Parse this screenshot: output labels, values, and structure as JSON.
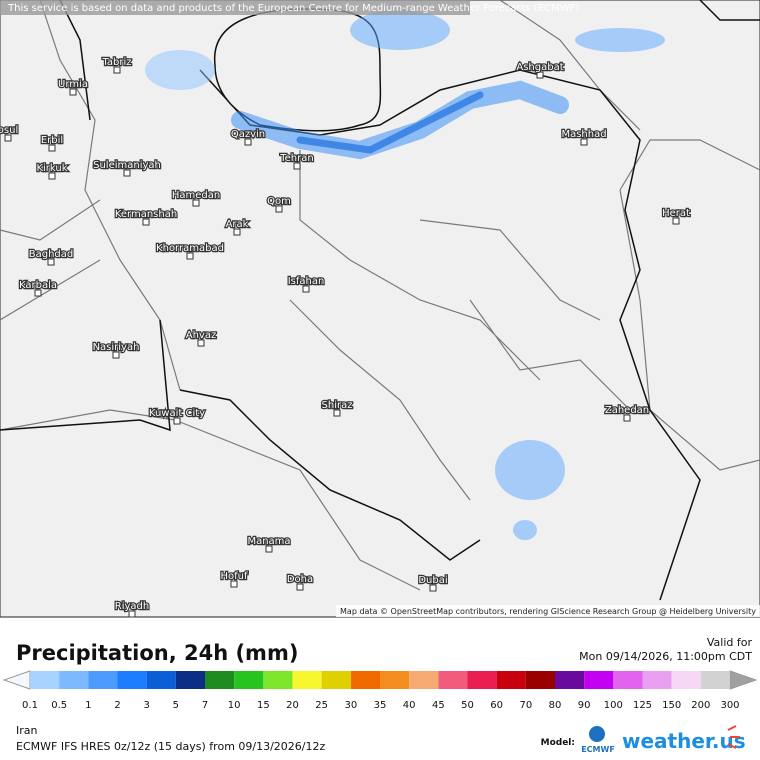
{
  "map": {
    "attribution": "This service is based on data and products of the European Centre for Medium-range Weather Forecasts (ECMWF)",
    "credits": "Map data © OpenStreetMap contributors, rendering GIScience Research Group @ Heidelberg University",
    "cities": [
      "Tabriz",
      "Urmia",
      "osul",
      "Erbil",
      "Kirkuk",
      "Suleimaniyah",
      "Qazvin",
      "Tehran",
      "Hamedan",
      "Kermanshah",
      "Qom",
      "Arak",
      "Khorramabad",
      "Baghdad",
      "Karbala",
      "Isfahan",
      "Ahvaz",
      "Nasiriyah",
      "Kuwait City",
      "Shiraz",
      "Zahedan",
      "Ashgabat",
      "Mashhad",
      "Herat",
      "Manama",
      "Hofuf",
      "Doha",
      "Dubai",
      "Riyadh"
    ]
  },
  "legend": {
    "title": "Precipitation, 24h (mm)",
    "valid_label": "Valid for",
    "valid_time": "Mon 09/14/2026, 11:00pm CDT",
    "scale_labels": [
      "0.1",
      "0.5",
      "1",
      "2",
      "3",
      "5",
      "7",
      "10",
      "15",
      "20",
      "25",
      "30",
      "35",
      "40",
      "45",
      "50",
      "60",
      "70",
      "80",
      "90",
      "100",
      "125",
      "150",
      "200",
      "300"
    ],
    "scale_colors": [
      "#a8d2ff",
      "#7cb9ff",
      "#4c9bff",
      "#1c7dff",
      "#0a5fd6",
      "#0b2f86",
      "#1e8c1e",
      "#27c41f",
      "#7ee62a",
      "#f7f72e",
      "#e0d000",
      "#f06a00",
      "#f58c1e",
      "#f6aa72",
      "#f25c7c",
      "#ea1e50",
      "#c8000e",
      "#9a0000",
      "#6a0a9c",
      "#c300f2",
      "#e263f0",
      "#eaa0f0",
      "#f4d8f6",
      "#d2d2d2"
    ]
  },
  "footer": {
    "region": "Iran",
    "run": "ECMWF IFS HRES 0z/12z (15 days) from 09/13/2026/12z",
    "model_label": "Model:",
    "model": "ECMWF",
    "brand": "weather.us"
  }
}
